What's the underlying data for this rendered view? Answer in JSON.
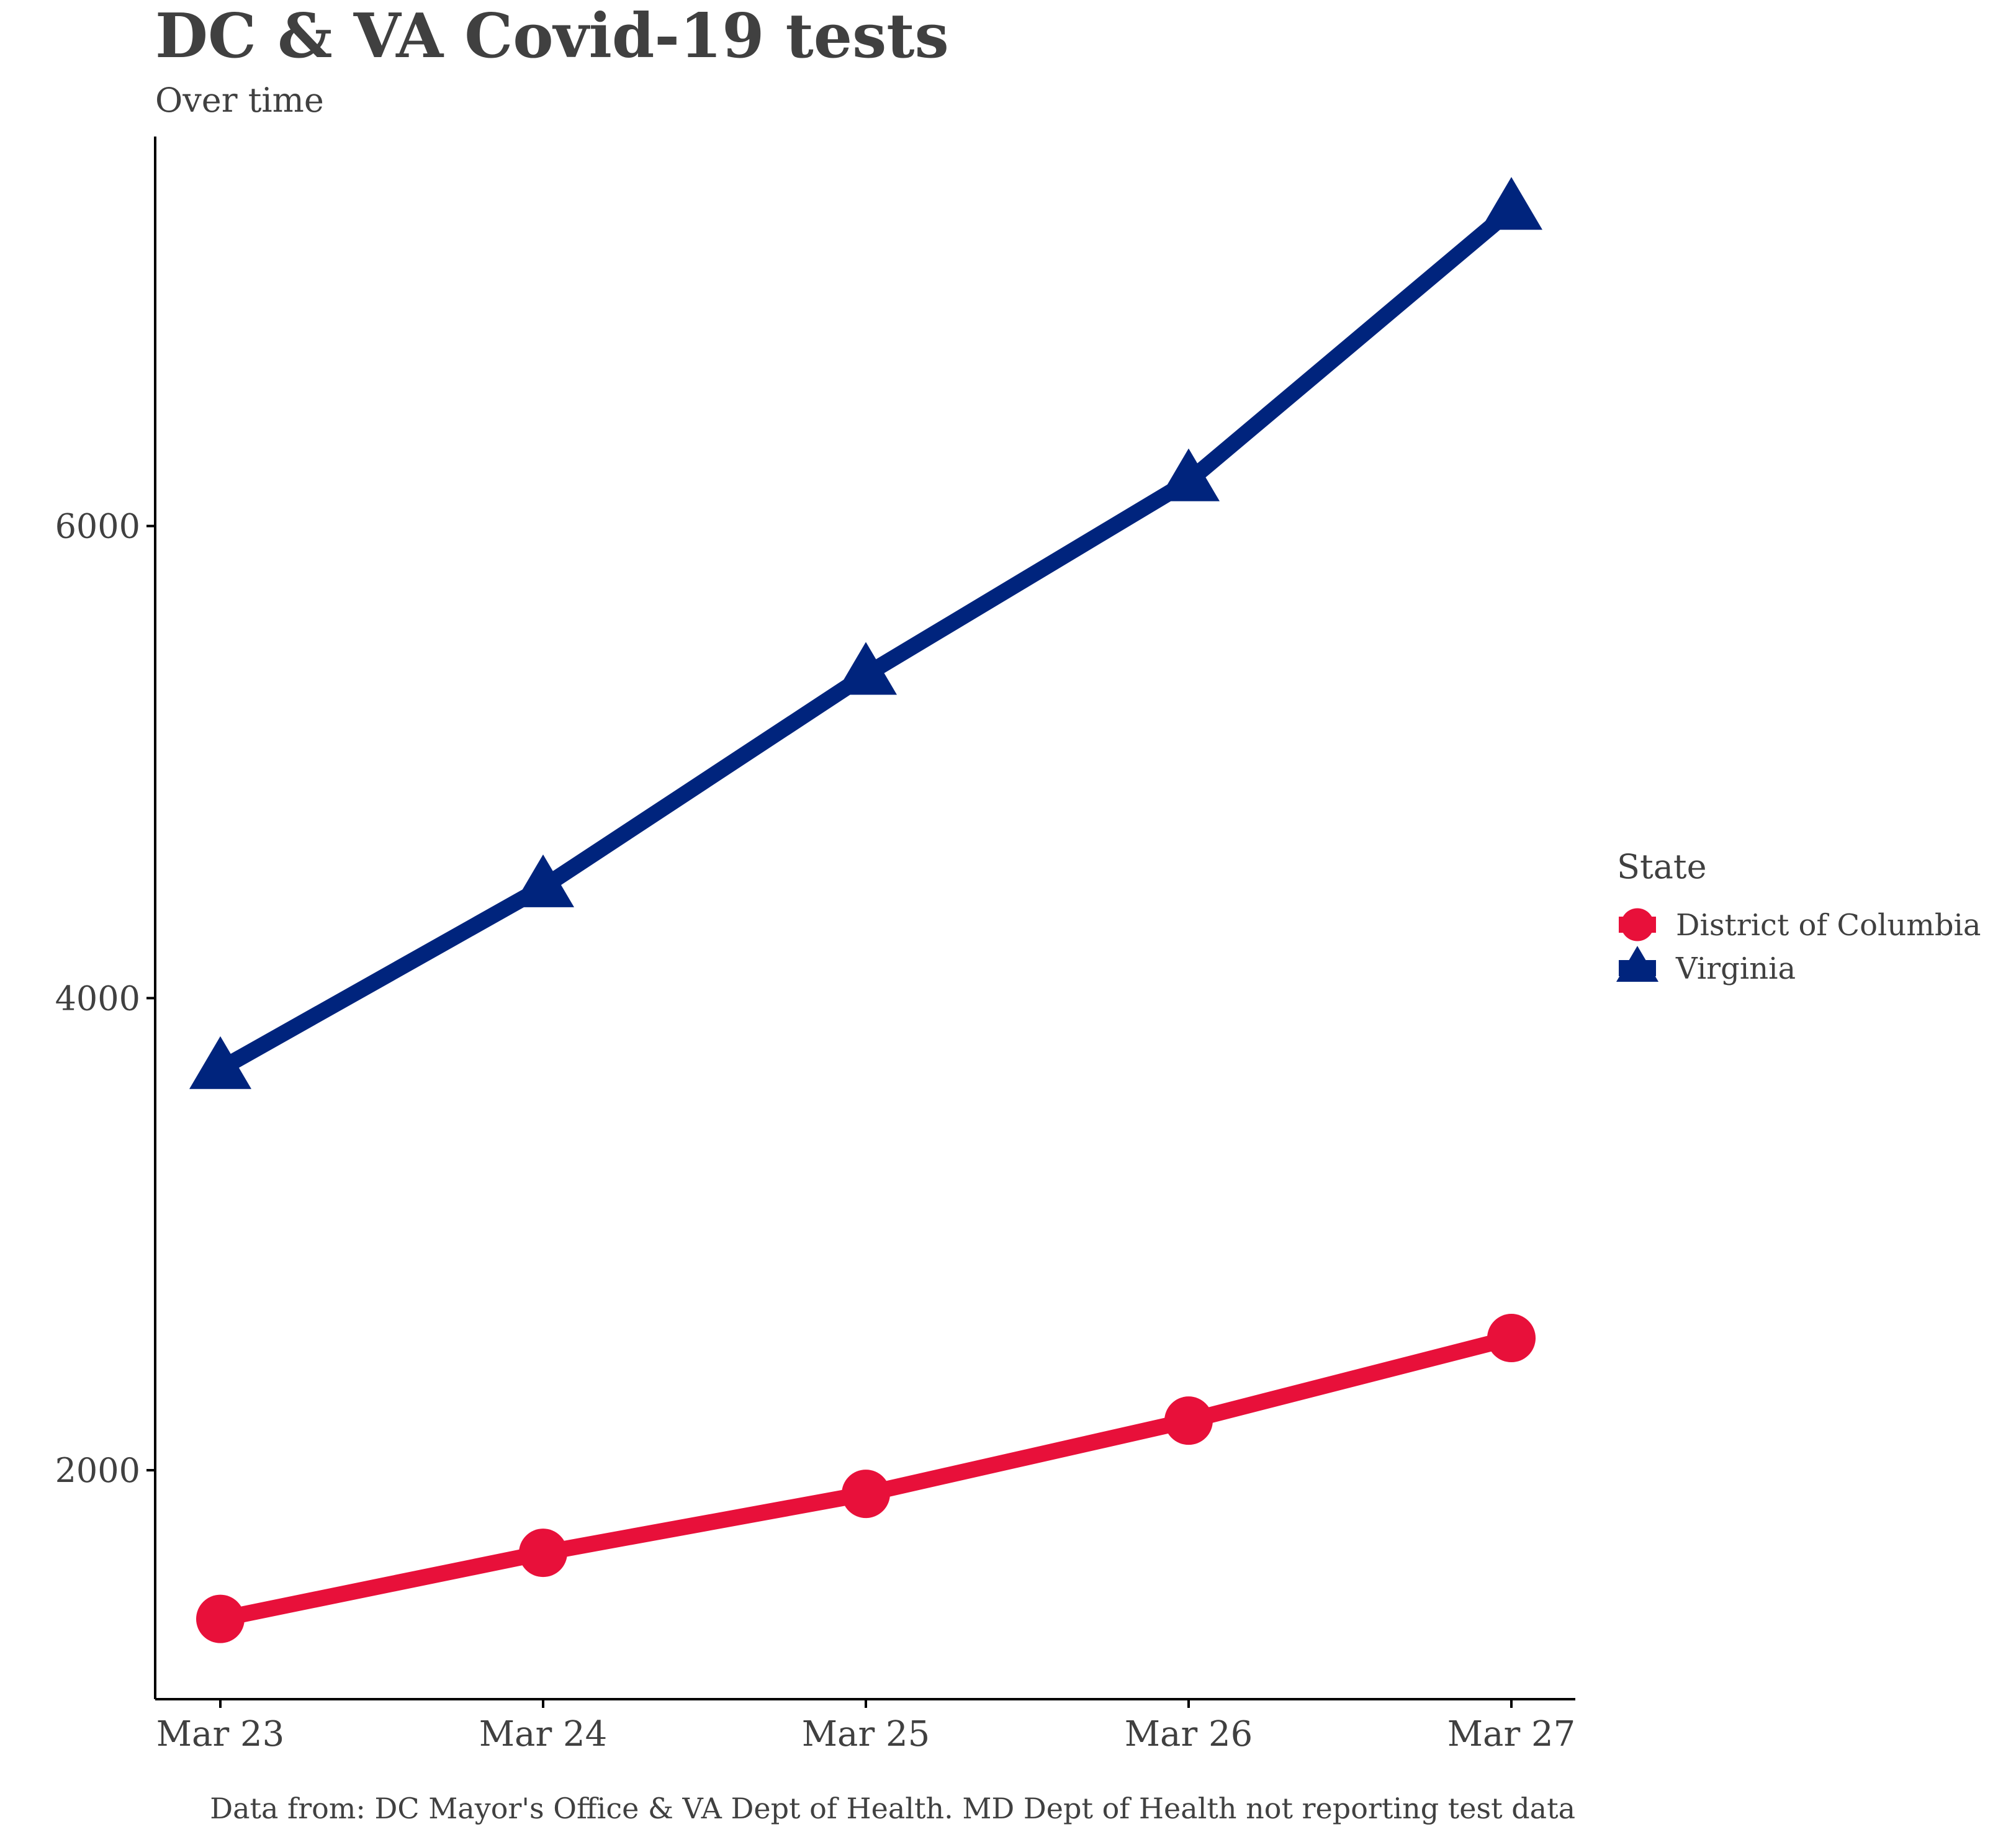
{
  "chart_data": {
    "type": "line",
    "title": "DC & VA Covid-19 tests",
    "subtitle": "Over time",
    "caption": "Data from: DC Mayor's Office & VA Dept of Health. MD Dept of Health not reporting test data",
    "xlabel": "",
    "ylabel": "",
    "categories": [
      "Mar 23",
      "Mar 24",
      "Mar 25",
      "Mar 26",
      "Mar 27"
    ],
    "y_ticks": [
      2000,
      4000,
      6000
    ],
    "ylim": [
      1030,
      7650
    ],
    "grid": false,
    "legend": {
      "title": "State",
      "placement": "right"
    },
    "series": [
      {
        "name": "District of Columbia",
        "marker": "circle",
        "color": "#E8103A",
        "values": [
          1370,
          1650,
          1900,
          2210,
          2560
        ]
      },
      {
        "name": "Virginia",
        "marker": "triangle",
        "color": "#00247D",
        "values": [
          3700,
          4470,
          5370,
          6190,
          7340
        ]
      }
    ]
  }
}
